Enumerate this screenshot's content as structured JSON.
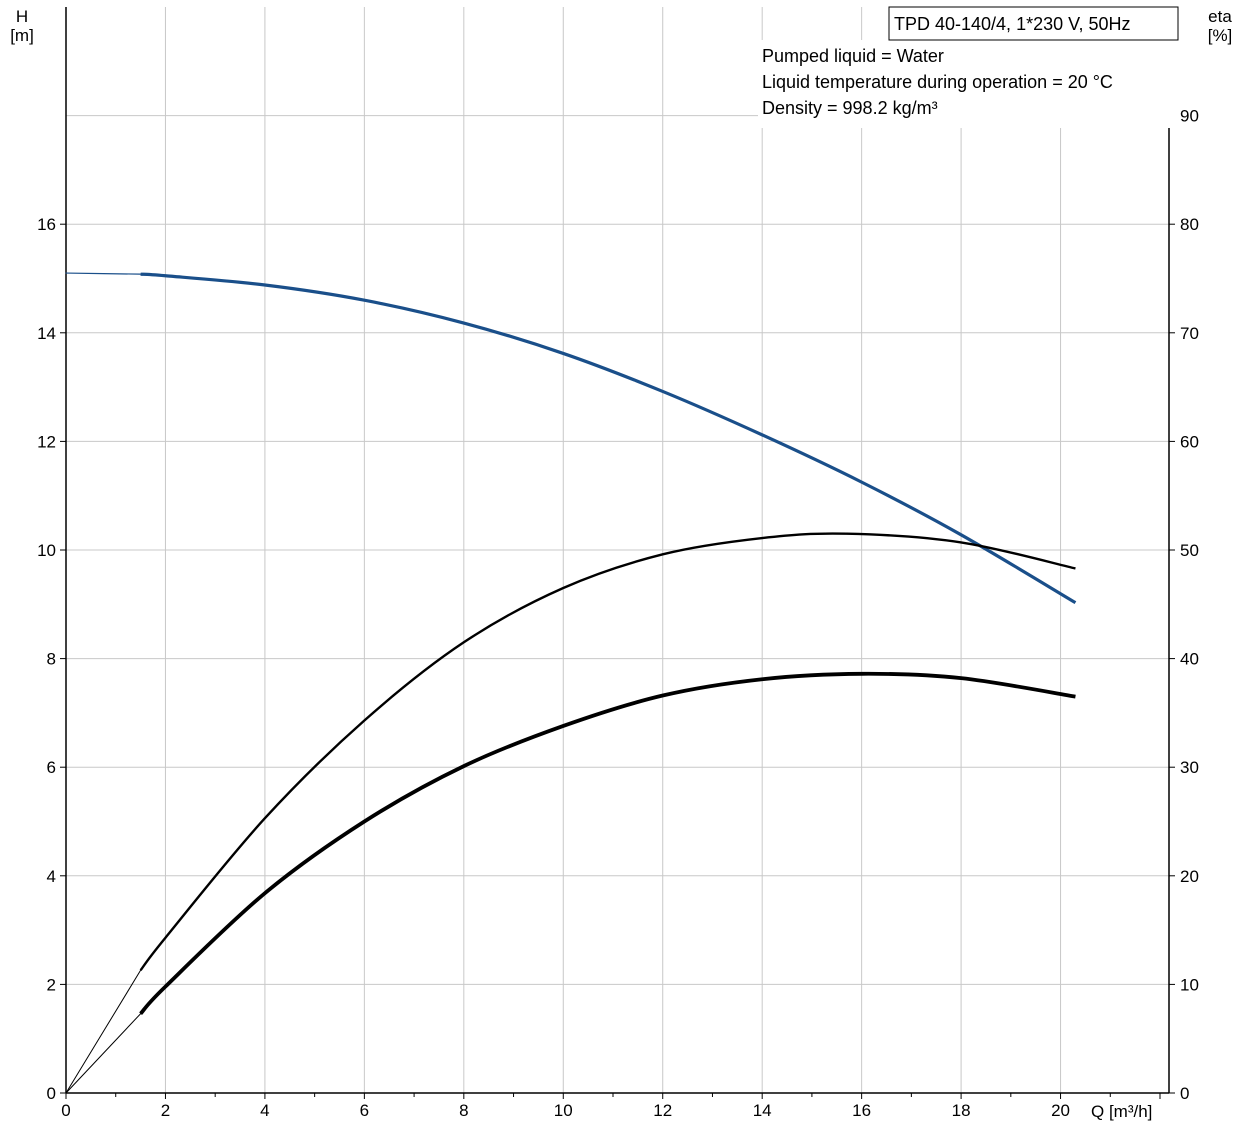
{
  "chart_data": {
    "type": "line",
    "title_box": "TPD 40-140/4, 1*230 V, 50Hz",
    "info_lines": [
      "Pumped liquid = Water",
      "Liquid temperature during operation = 20 °C",
      "Density = 998.2 kg/m³"
    ],
    "x_axis": {
      "label": "Q [m³/h]",
      "range": [
        0,
        22
      ],
      "ticks": [
        0,
        2,
        4,
        6,
        8,
        10,
        12,
        14,
        16,
        18,
        20
      ],
      "tick_labels": [
        "0",
        "2",
        "4",
        "6",
        "8",
        "10",
        "12",
        "14",
        "16",
        "18",
        "20"
      ],
      "minor_step": 1
    },
    "y_left_axis": {
      "label_line1": "H",
      "label_line2": "[m]",
      "range": [
        0,
        20
      ],
      "ticks": [
        0,
        2,
        4,
        6,
        8,
        10,
        12,
        14,
        16
      ],
      "tick_labels": [
        "0",
        "2",
        "4",
        "6",
        "8",
        "10",
        "12",
        "14",
        "16"
      ],
      "grid_extra": [
        18
      ]
    },
    "y_right_axis": {
      "label_line1": "eta",
      "label_line2": "[%]",
      "range": [
        0,
        100
      ],
      "ticks": [
        0,
        10,
        20,
        30,
        40,
        50,
        60,
        70,
        80,
        90
      ],
      "tick_labels": [
        "0",
        "10",
        "20",
        "30",
        "40",
        "50",
        "60",
        "70",
        "80",
        "90"
      ]
    },
    "grid": true,
    "series": [
      {
        "axis": "left",
        "color": "#1a4f8a",
        "stroke_width": 3.2,
        "extension_stroke_width": 1.2,
        "extension": [
          {
            "x": 0,
            "y": 15.1
          },
          {
            "x": 1.5,
            "y": 15.08
          }
        ],
        "points": [
          {
            "x": 1.5,
            "y": 15.08
          },
          {
            "x": 2,
            "y": 15.05
          },
          {
            "x": 4,
            "y": 14.88
          },
          {
            "x": 6,
            "y": 14.6
          },
          {
            "x": 8,
            "y": 14.18
          },
          {
            "x": 10,
            "y": 13.62
          },
          {
            "x": 12,
            "y": 12.92
          },
          {
            "x": 14,
            "y": 12.12
          },
          {
            "x": 16,
            "y": 11.25
          },
          {
            "x": 18,
            "y": 10.28
          },
          {
            "x": 20.3,
            "y": 9.03
          }
        ]
      },
      {
        "axis": "right",
        "color": "#000000",
        "stroke_width": 2.4,
        "extension_stroke_width": 1,
        "extension": [
          {
            "x": 0,
            "y": 0
          },
          {
            "x": 1.5,
            "y": 11.3
          }
        ],
        "points": [
          {
            "x": 1.5,
            "y": 11.3
          },
          {
            "x": 2,
            "y": 14.3
          },
          {
            "x": 4,
            "y": 25.3
          },
          {
            "x": 6,
            "y": 34.3
          },
          {
            "x": 8,
            "y": 41.5
          },
          {
            "x": 10,
            "y": 46.5
          },
          {
            "x": 12,
            "y": 49.6
          },
          {
            "x": 14,
            "y": 51.1
          },
          {
            "x": 15.7,
            "y": 51.5
          },
          {
            "x": 18,
            "y": 50.7
          },
          {
            "x": 20.3,
            "y": 48.3
          }
        ]
      },
      {
        "axis": "right",
        "color": "#000000",
        "stroke_width": 3.8,
        "extension_stroke_width": 1,
        "extension": [
          {
            "x": 0,
            "y": 0
          },
          {
            "x": 1.5,
            "y": 7.3
          }
        ],
        "points": [
          {
            "x": 1.5,
            "y": 7.3
          },
          {
            "x": 2,
            "y": 9.8
          },
          {
            "x": 4,
            "y": 18.4
          },
          {
            "x": 6,
            "y": 25
          },
          {
            "x": 8,
            "y": 30.1
          },
          {
            "x": 10,
            "y": 33.8
          },
          {
            "x": 12,
            "y": 36.6
          },
          {
            "x": 14,
            "y": 38.1
          },
          {
            "x": 16,
            "y": 38.6
          },
          {
            "x": 18,
            "y": 38.2
          },
          {
            "x": 20.3,
            "y": 36.5
          }
        ]
      }
    ]
  }
}
